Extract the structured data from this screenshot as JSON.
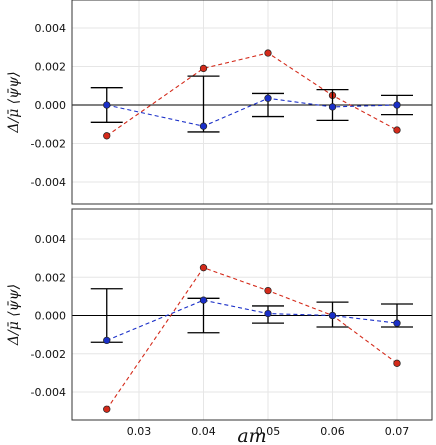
{
  "chart_data": [
    {
      "type": "scatter",
      "title": "",
      "xlabel": "",
      "ylabel": "Δ/μ̄ ⟨ψ̄ψ⟩",
      "xlim": [
        0.02,
        0.075
      ],
      "ylim": [
        -0.0056,
        0.0052
      ],
      "x_ticks": [
        0.03,
        0.04,
        0.05,
        0.06,
        0.07
      ],
      "y_ticks": [
        -0.004,
        -0.002,
        0.0,
        0.002,
        0.004
      ],
      "y_tick_labels": [
        "-0.004",
        "-0.002",
        "0.000",
        "0.002",
        "0.004"
      ],
      "x_tick_labels": [
        "",
        "",
        "",
        "",
        ""
      ],
      "grid": true,
      "zero_line": true,
      "series": [
        {
          "style": "red-dashed-markers",
          "color": "#d42a1a",
          "x": [
            0.025,
            0.04,
            0.05,
            0.06,
            0.07
          ],
          "y": [
            -0.0016,
            0.0019,
            0.0027,
            0.0005,
            -0.0013
          ]
        },
        {
          "style": "blue-dashed-errorbars",
          "color": "#1a2fc8",
          "x": [
            0.025,
            0.04,
            0.05,
            0.06,
            0.07
          ],
          "y": [
            0.0,
            -0.0011,
            0.00035,
            -0.0001,
            0.0
          ],
          "err_low": [
            0.0009,
            0.0003,
            0.00095,
            0.0007,
            0.0005
          ],
          "err_high": [
            0.0009,
            0.0026,
            0.00025,
            0.0009,
            0.0005
          ]
        }
      ]
    },
    {
      "type": "scatter",
      "title": "",
      "xlabel": "am",
      "ylabel": "Δ/μ̄ ⟨ψ̄ψ⟩",
      "xlim": [
        0.02,
        0.075
      ],
      "ylim": [
        -0.0056,
        0.0052
      ],
      "x_ticks": [
        0.03,
        0.04,
        0.05,
        0.06,
        0.07
      ],
      "x_tick_labels": [
        "0.03",
        "0.04",
        "0.05",
        "0.06",
        "0.07"
      ],
      "y_ticks": [
        -0.004,
        -0.002,
        0.0,
        0.002,
        0.004
      ],
      "y_tick_labels": [
        "-0.004",
        "-0.002",
        "0.000",
        "0.002",
        "0.004"
      ],
      "grid": true,
      "zero_line": true,
      "series": [
        {
          "style": "red-dashed-markers",
          "color": "#d42a1a",
          "x": [
            0.025,
            0.04,
            0.05,
            0.06,
            0.07
          ],
          "y": [
            -0.0049,
            0.0025,
            0.0013,
            0.0,
            -0.0025
          ]
        },
        {
          "style": "blue-dashed-errorbars",
          "color": "#1a2fc8",
          "x": [
            0.025,
            0.04,
            0.05,
            0.06,
            0.07
          ],
          "y": [
            -0.0013,
            0.0008,
            0.0001,
            0.0,
            -0.0004
          ],
          "err_low": [
            0.0001,
            0.0017,
            0.0005,
            0.0006,
            0.0002
          ],
          "err_high": [
            0.0027,
            0.0001,
            0.0004,
            0.0007,
            0.001
          ]
        }
      ]
    }
  ]
}
